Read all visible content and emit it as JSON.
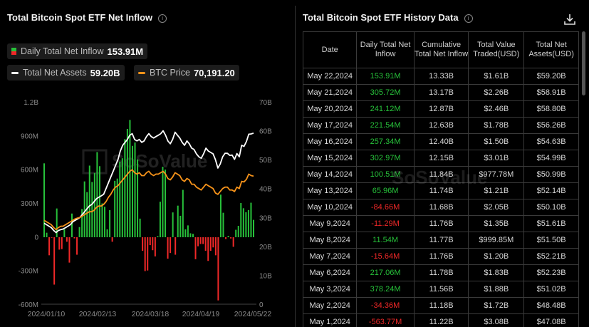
{
  "left": {
    "title": "Total Bitcoin Spot ETF Net Inflow",
    "legend": {
      "daily_label": "Daily Total Net Inflow",
      "daily_value": "153.91M",
      "assets_label": "Total Net Assets",
      "assets_value": "59.20B",
      "btc_label": "BTC Price",
      "btc_value": "70,191.20"
    },
    "watermark": "SoSoValue"
  },
  "right": {
    "title": "Total Bitcoin Spot ETF History Data",
    "headers": [
      "Date",
      "Daily Total Net Inflow",
      "Cumulative Total Net Inflow",
      "Total Value Traded(USD)",
      "Total Net Assets(USD)"
    ],
    "rows": [
      {
        "date": "May 22,2024",
        "daily": "153.91M",
        "sign": "pos",
        "cum": "13.33B",
        "traded": "$1.61B",
        "assets": "$59.20B"
      },
      {
        "date": "May 21,2024",
        "daily": "305.72M",
        "sign": "pos",
        "cum": "13.17B",
        "traded": "$2.26B",
        "assets": "$58.91B"
      },
      {
        "date": "May 20,2024",
        "daily": "241.12M",
        "sign": "pos",
        "cum": "12.87B",
        "traded": "$2.46B",
        "assets": "$58.80B"
      },
      {
        "date": "May 17,2024",
        "daily": "221.54M",
        "sign": "pos",
        "cum": "12.63B",
        "traded": "$1.78B",
        "assets": "$56.26B"
      },
      {
        "date": "May 16,2024",
        "daily": "257.34M",
        "sign": "pos",
        "cum": "12.40B",
        "traded": "$1.50B",
        "assets": "$54.63B"
      },
      {
        "date": "May 15,2024",
        "daily": "302.97M",
        "sign": "pos",
        "cum": "12.15B",
        "traded": "$3.01B",
        "assets": "$54.99B"
      },
      {
        "date": "May 14,2024",
        "daily": "100.51M",
        "sign": "pos",
        "cum": "11.84B",
        "traded": "$977.78M",
        "assets": "$50.99B"
      },
      {
        "date": "May 13,2024",
        "daily": "65.96M",
        "sign": "pos",
        "cum": "11.74B",
        "traded": "$1.21B",
        "assets": "$52.14B"
      },
      {
        "date": "May 10,2024",
        "daily": "-84.66M",
        "sign": "neg",
        "cum": "11.68B",
        "traded": "$2.05B",
        "assets": "$50.10B"
      },
      {
        "date": "May 9,2024",
        "daily": "-11.29M",
        "sign": "neg",
        "cum": "11.76B",
        "traded": "$1.35B",
        "assets": "$51.61B"
      },
      {
        "date": "May 8,2024",
        "daily": "11.54M",
        "sign": "pos",
        "cum": "11.77B",
        "traded": "$999.85M",
        "assets": "$51.50B"
      },
      {
        "date": "May 7,2024",
        "daily": "-15.64M",
        "sign": "neg",
        "cum": "11.76B",
        "traded": "$1.20B",
        "assets": "$52.21B"
      },
      {
        "date": "May 6,2024",
        "daily": "217.06M",
        "sign": "pos",
        "cum": "11.78B",
        "traded": "$1.83B",
        "assets": "$52.23B"
      },
      {
        "date": "May 3,2024",
        "daily": "378.24M",
        "sign": "pos",
        "cum": "11.56B",
        "traded": "$1.88B",
        "assets": "$51.02B"
      },
      {
        "date": "May 2,2024",
        "daily": "-34.36M",
        "sign": "neg",
        "cum": "11.18B",
        "traded": "$1.72B",
        "assets": "$48.48B"
      },
      {
        "date": "May 1,2024",
        "daily": "-563.77M",
        "sign": "neg",
        "cum": "11.22B",
        "traded": "$3.08B",
        "assets": "$47.08B"
      }
    ]
  },
  "colors": {
    "positive": "#27c13a",
    "negative": "#f02828",
    "assets_line": "#ffffff",
    "btc_line": "#f7931a"
  },
  "chart_data": {
    "type": "bar",
    "y_left_ticks": [
      "1.2B",
      "900M",
      "600M",
      "300M",
      "0",
      "-300M",
      "-600M"
    ],
    "y_left_lim": [
      -600,
      1200
    ],
    "y_left_unit": "M",
    "y_right_ticks": [
      "70B",
      "60B",
      "50B",
      "40B",
      "30B",
      "20B",
      "10B",
      "0"
    ],
    "y_right_lim": [
      0,
      70
    ],
    "x_ticks": [
      "2024/01/10",
      "2024/02/13",
      "2024/03/18",
      "2024/04/19",
      "2024/05/22"
    ],
    "grid": false,
    "series": [
      {
        "name": "Daily Total Net Inflow",
        "kind": "bar",
        "values": [
          655,
          40,
          -160,
          -5,
          -420,
          255,
          -110,
          -105,
          70,
          -40,
          -225,
          210,
          -10,
          -155,
          90,
          250,
          495,
          400,
          635,
          490,
          570,
          755,
          630,
          300,
          270,
          70,
          240,
          -40,
          500,
          520,
          670,
          700,
          870,
          960,
          1040,
          810,
          840,
          690,
          165,
          -120,
          -300,
          -295,
          -70,
          -115,
          -170,
          10,
          315,
          625,
          600,
          -190,
          -140,
          220,
          -155,
          280,
          190,
          420,
          70,
          105,
          35,
          30,
          -195,
          -80,
          -60,
          -60,
          -120,
          -210,
          -120,
          -90,
          -160,
          -560,
          378,
          217,
          -16,
          12,
          -11,
          -85,
          66,
          101,
          303,
          257,
          222,
          241,
          306,
          154
        ]
      },
      {
        "name": "Total Net Assets",
        "kind": "line",
        "values": [
          28,
          27.5,
          27,
          26.5,
          25.5,
          24.8,
          25.5,
          25.8,
          26,
          26.5,
          27,
          27.5,
          28.5,
          29,
          29.5,
          30,
          31,
          32,
          33,
          34,
          34.5,
          35.5,
          36.5,
          37,
          37.5,
          38,
          40,
          42,
          44,
          46,
          48,
          50,
          53,
          55,
          56,
          57,
          58.5,
          59,
          57,
          56.5,
          57,
          56,
          56.5,
          58,
          59,
          58,
          57.5,
          58,
          58.5,
          59,
          60,
          58.5,
          56.5,
          55.5,
          57,
          59.5,
          58.5,
          57.5,
          56,
          55,
          56.5,
          55.5,
          54,
          53.5,
          52,
          51,
          50.5,
          52,
          54,
          53,
          52.5,
          52,
          50,
          47.1,
          48.5,
          51,
          52.2,
          52.2,
          51.5,
          51.6,
          50.1,
          52.1,
          51,
          55,
          54.6,
          56.3,
          58.8,
          58.9,
          59.2
        ]
      },
      {
        "name": "BTC Price",
        "kind": "line",
        "values": [
          29,
          28.5,
          28,
          27.5,
          26.5,
          25.8,
          26.5,
          27,
          27,
          27.5,
          28,
          28.5,
          29,
          29.5,
          29.8,
          30,
          30.5,
          31,
          31.5,
          32,
          32,
          32.5,
          33.5,
          34,
          34,
          34.5,
          35.5,
          37,
          38,
          39.5,
          40.5,
          41,
          42,
          43,
          44,
          45,
          46,
          46.5,
          45.5,
          45,
          45.5,
          44.5,
          44.5,
          45.5,
          46,
          45,
          44.5,
          45,
          45,
          45.5,
          46,
          45,
          43.5,
          43,
          44,
          45.5,
          45,
          44.5,
          43,
          42.5,
          43.5,
          43,
          41.5,
          41.5,
          40.5,
          40,
          39.5,
          40.5,
          41.5,
          41,
          40.5,
          40,
          38.5,
          38,
          39,
          40,
          40.5,
          40.5,
          39.5,
          39.5,
          39,
          40.5,
          40,
          42.5,
          42.3,
          43.2,
          45,
          44.5,
          44.3
        ]
      }
    ]
  }
}
